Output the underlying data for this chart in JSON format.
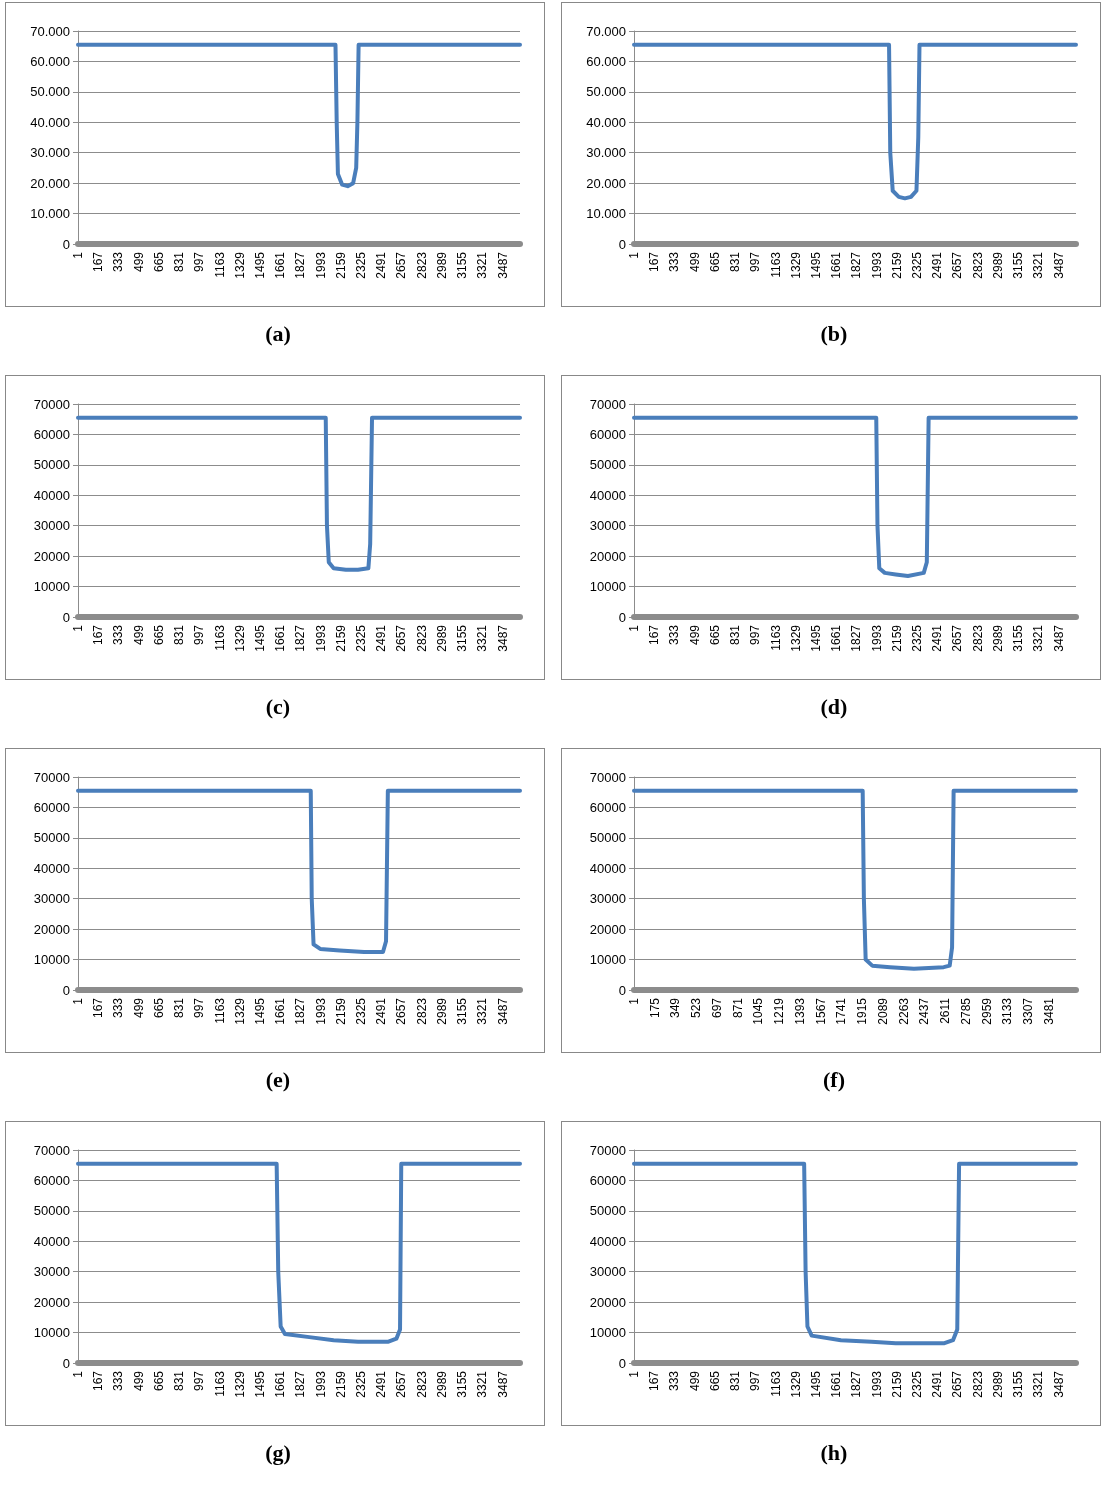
{
  "chart_data": [
    {
      "type": "line",
      "annotations": [
        "(a)"
      ],
      "x": [
        1,
        2115,
        2125,
        2135,
        2170,
        2215,
        2260,
        2285,
        2295,
        2305,
        3630
      ],
      "series": [
        {
          "color": "#4a7ebb",
          "values": [
            65500,
            65500,
            40000,
            23000,
            19500,
            19000,
            20000,
            25000,
            40000,
            65500,
            65500
          ]
        }
      ],
      "xlim": [
        1,
        3630
      ],
      "xticks": [
        1,
        167,
        333,
        499,
        665,
        831,
        997,
        1163,
        1329,
        1495,
        1661,
        1827,
        1993,
        2159,
        2325,
        2491,
        2657,
        2823,
        2989,
        3155,
        3321,
        3487
      ],
      "ylim": [
        0,
        70000
      ],
      "yticks": [
        0,
        {
          "value": 10000,
          "label": "10.000"
        },
        {
          "value": 20000,
          "label": "20.000"
        },
        {
          "value": 30000,
          "label": "30.000"
        },
        {
          "value": 40000,
          "label": "40.000"
        },
        {
          "value": 50000,
          "label": "50.000"
        },
        {
          "value": 60000,
          "label": "60.000"
        },
        {
          "value": 70000,
          "label": "70.000"
        }
      ],
      "grid": "y",
      "marker": "none",
      "line_style": "solid"
    },
    {
      "type": "line",
      "annotations": [
        "(b)"
      ],
      "x": [
        1,
        2095,
        2105,
        2125,
        2175,
        2225,
        2275,
        2320,
        2335,
        2345,
        3630
      ],
      "series": [
        {
          "color": "#4a7ebb",
          "values": [
            65500,
            65500,
            30000,
            17500,
            15500,
            15000,
            15500,
            17500,
            35000,
            65500,
            65500
          ]
        }
      ],
      "xlim": [
        1,
        3630
      ],
      "xticks": [
        1,
        167,
        333,
        499,
        665,
        831,
        997,
        1163,
        1329,
        1495,
        1661,
        1827,
        1993,
        2159,
        2325,
        2491,
        2657,
        2823,
        2989,
        3155,
        3321,
        3487
      ],
      "ylim": [
        0,
        70000
      ],
      "yticks": [
        0,
        {
          "value": 10000,
          "label": "10.000"
        },
        {
          "value": 20000,
          "label": "20.000"
        },
        {
          "value": 30000,
          "label": "30.000"
        },
        {
          "value": 40000,
          "label": "40.000"
        },
        {
          "value": 50000,
          "label": "50.000"
        },
        {
          "value": 60000,
          "label": "60.000"
        },
        {
          "value": 70000,
          "label": "70.000"
        }
      ],
      "grid": "y",
      "marker": "none",
      "line_style": "solid"
    },
    {
      "type": "line",
      "annotations": [
        "(c)"
      ],
      "x": [
        1,
        2035,
        2045,
        2060,
        2100,
        2200,
        2300,
        2385,
        2400,
        2415,
        3630
      ],
      "series": [
        {
          "color": "#4a7ebb",
          "values": [
            65500,
            65500,
            30000,
            18000,
            16000,
            15500,
            15500,
            16000,
            24000,
            65500,
            65500
          ]
        }
      ],
      "xlim": [
        1,
        3630
      ],
      "xticks": [
        1,
        167,
        333,
        499,
        665,
        831,
        997,
        1163,
        1329,
        1495,
        1661,
        1827,
        1993,
        2159,
        2325,
        2491,
        2657,
        2823,
        2989,
        3155,
        3321,
        3487
      ],
      "ylim": [
        0,
        70000
      ],
      "yticks": [
        0,
        10000,
        20000,
        30000,
        40000,
        50000,
        60000,
        70000
      ],
      "grid": "y",
      "marker": "none",
      "line_style": "solid"
    },
    {
      "type": "line",
      "annotations": [
        "(d)"
      ],
      "x": [
        1,
        1990,
        2000,
        2015,
        2060,
        2150,
        2250,
        2380,
        2405,
        2420,
        3630
      ],
      "series": [
        {
          "color": "#4a7ebb",
          "values": [
            65500,
            65500,
            30000,
            16000,
            14500,
            14000,
            13500,
            14500,
            18000,
            65500,
            65500
          ]
        }
      ],
      "xlim": [
        1,
        3630
      ],
      "xticks": [
        1,
        167,
        333,
        499,
        665,
        831,
        997,
        1163,
        1329,
        1495,
        1661,
        1827,
        1993,
        2159,
        2325,
        2491,
        2657,
        2823,
        2989,
        3155,
        3321,
        3487
      ],
      "ylim": [
        0,
        70000
      ],
      "yticks": [
        0,
        10000,
        20000,
        30000,
        40000,
        50000,
        60000,
        70000
      ],
      "grid": "y",
      "marker": "none",
      "line_style": "solid"
    },
    {
      "type": "line",
      "annotations": [
        "(e)"
      ],
      "x": [
        1,
        1912,
        1920,
        1935,
        1990,
        2150,
        2350,
        2505,
        2530,
        2545,
        3630
      ],
      "series": [
        {
          "color": "#4a7ebb",
          "values": [
            65500,
            65500,
            30000,
            15000,
            13500,
            13000,
            12500,
            12500,
            16000,
            65500,
            65500
          ]
        }
      ],
      "xlim": [
        1,
        3630
      ],
      "xticks": [
        1,
        167,
        333,
        499,
        665,
        831,
        997,
        1163,
        1329,
        1495,
        1661,
        1827,
        1993,
        2159,
        2325,
        2491,
        2657,
        2823,
        2989,
        3155,
        3321,
        3487
      ],
      "ylim": [
        0,
        70000
      ],
      "yticks": [
        0,
        10000,
        20000,
        30000,
        40000,
        50000,
        60000,
        70000
      ],
      "grid": "y",
      "marker": "none",
      "line_style": "solid"
    },
    {
      "type": "line",
      "annotations": [
        "(f)"
      ],
      "x": [
        1,
        1920,
        1930,
        1945,
        2000,
        2150,
        2350,
        2600,
        2650,
        2670,
        2683,
        3710
      ],
      "series": [
        {
          "color": "#4a7ebb",
          "values": [
            65500,
            65500,
            30000,
            10000,
            8000,
            7500,
            7000,
            7500,
            8000,
            14000,
            65500,
            65500
          ]
        }
      ],
      "xlim": [
        1,
        3710
      ],
      "xticks": [
        1,
        175,
        349,
        523,
        697,
        871,
        1045,
        1219,
        1393,
        1567,
        1741,
        1915,
        2089,
        2263,
        2437,
        2611,
        2785,
        2959,
        3133,
        3307,
        3481
      ],
      "ylim": [
        0,
        70000
      ],
      "yticks": [
        0,
        10000,
        20000,
        30000,
        40000,
        50000,
        60000,
        70000
      ],
      "grid": "y",
      "marker": "none",
      "line_style": "solid"
    },
    {
      "type": "line",
      "annotations": [
        "(g)"
      ],
      "x": [
        1,
        1632,
        1645,
        1665,
        1700,
        1900,
        2100,
        2300,
        2550,
        2615,
        2645,
        2655,
        3630
      ],
      "series": [
        {
          "color": "#4a7ebb",
          "values": [
            65500,
            65500,
            30000,
            12000,
            9500,
            8500,
            7500,
            7000,
            7000,
            8000,
            11000,
            65500,
            65500
          ]
        }
      ],
      "xlim": [
        1,
        3630
      ],
      "xticks": [
        1,
        167,
        333,
        499,
        665,
        831,
        997,
        1163,
        1329,
        1495,
        1661,
        1827,
        1993,
        2159,
        2325,
        2491,
        2657,
        2823,
        2989,
        3155,
        3321,
        3487
      ],
      "ylim": [
        0,
        70000
      ],
      "yticks": [
        0,
        10000,
        20000,
        30000,
        40000,
        50000,
        60000,
        70000
      ],
      "grid": "y",
      "marker": "none",
      "line_style": "solid"
    },
    {
      "type": "line",
      "annotations": [
        "(h)"
      ],
      "x": [
        1,
        1398,
        1410,
        1425,
        1460,
        1700,
        1950,
        2150,
        2550,
        2620,
        2655,
        2670,
        3630
      ],
      "series": [
        {
          "color": "#4a7ebb",
          "values": [
            65500,
            65500,
            30000,
            12000,
            9000,
            7500,
            7000,
            6500,
            6500,
            7500,
            11000,
            65500,
            65500
          ]
        }
      ],
      "xlim": [
        1,
        3630
      ],
      "xticks": [
        1,
        167,
        333,
        499,
        665,
        831,
        997,
        1163,
        1329,
        1495,
        1661,
        1827,
        1993,
        2159,
        2325,
        2491,
        2657,
        2823,
        2989,
        3155,
        3321,
        3487
      ],
      "ylim": [
        0,
        70000
      ],
      "yticks": [
        0,
        10000,
        20000,
        30000,
        40000,
        50000,
        60000,
        70000
      ],
      "grid": "y",
      "marker": "none",
      "line_style": "solid"
    }
  ]
}
